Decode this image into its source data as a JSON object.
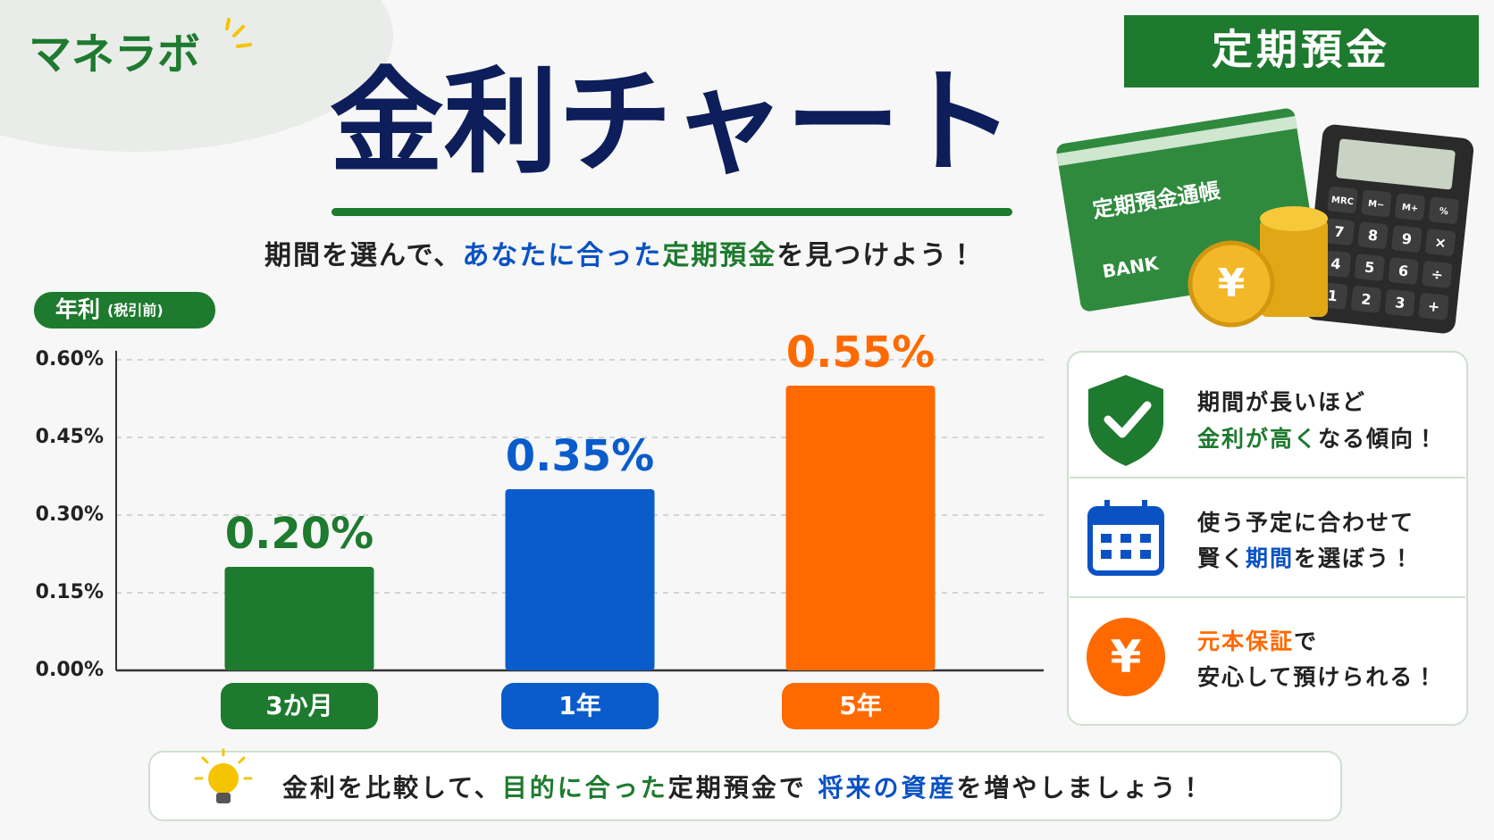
{
  "brand": "マネラボ",
  "badge": "定期預金",
  "title": "金利チャート",
  "subtitle": [
    "期間を選んで、",
    "あなたに合った",
    "定期預金",
    "を見つけよう！"
  ],
  "illustration": {
    "passbook": "定期預金通帳",
    "bank": "BANK",
    "coin": "¥",
    "keys": [
      "MRC",
      "M−",
      "M+",
      "%",
      "7",
      "8",
      "9",
      "×",
      "4",
      "5",
      "6",
      "÷",
      "1",
      "2",
      "3",
      "+"
    ]
  },
  "chart_data": {
    "type": "bar",
    "y_label": "年利",
    "y_label_note": "(税引前)",
    "categories": [
      "3か月",
      "1年",
      "5年"
    ],
    "values": [
      0.2,
      0.35,
      0.55
    ],
    "value_labels": [
      "0.20%",
      "0.35%",
      "0.55%"
    ],
    "colors": [
      "#1e7a2e",
      "#0a5ccc",
      "#ff6a00"
    ],
    "ylim": [
      0,
      0.6
    ],
    "yticks": [
      {
        "value": 0,
        "label": "0.00%"
      },
      {
        "value": 0.15,
        "label": "0.15%"
      },
      {
        "value": 0.3,
        "label": "0.30%"
      },
      {
        "value": 0.45,
        "label": "0.45%"
      },
      {
        "value": 0.6,
        "label": "0.60%"
      }
    ],
    "grid": true
  },
  "tips": [
    {
      "lines": [
        [
          "期間が長いほど"
        ],
        [
          "金利が高く",
          "なる傾向！"
        ]
      ]
    },
    {
      "lines": [
        [
          "使う予定に合わせて"
        ],
        [
          "賢く",
          "期間",
          "を選ぼう！"
        ]
      ]
    },
    {
      "icon": "¥",
      "lines": [
        [
          "元本保証",
          "で"
        ],
        [
          "安心して預けられる！"
        ]
      ]
    }
  ],
  "footer": [
    "金利を比較して、",
    "目的に合った",
    "定期預金で ",
    "将来の資産",
    "を増やしましょう！"
  ]
}
